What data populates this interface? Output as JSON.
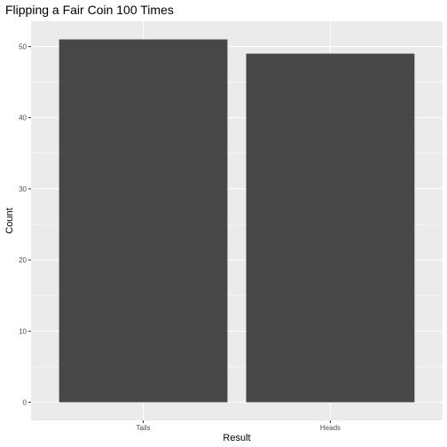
{
  "chart_data": {
    "type": "bar",
    "title": "Flipping a Fair Coin 100 Times",
    "xlabel": "Result",
    "ylabel": "Count",
    "categories": [
      "Tails",
      "Heads"
    ],
    "values": [
      51,
      49
    ],
    "ylim": [
      -2.55,
      53.55
    ],
    "yticks": [
      0,
      10,
      20,
      30,
      40,
      50
    ],
    "grid": true,
    "legend": "none",
    "colors": {
      "panel_background": "#ebebeb",
      "gridline": "#ffffff",
      "bar_fill": "#474747",
      "tick_label": "#4d4d4d"
    }
  }
}
